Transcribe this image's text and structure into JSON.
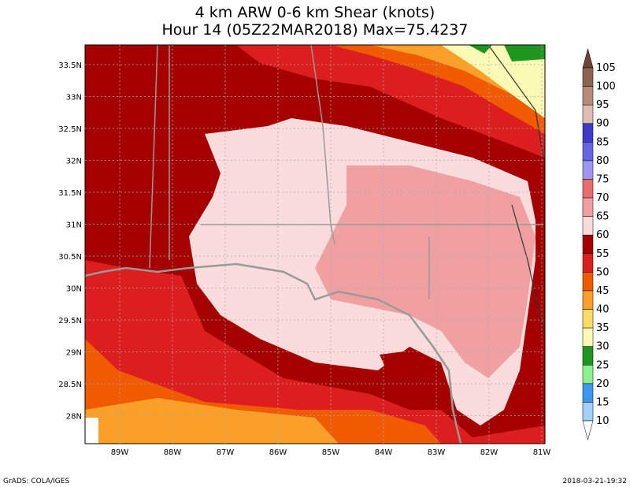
{
  "title": {
    "line1": "4 km ARW 0-6 km Shear (knots)",
    "line2": "Hour 14 (05Z22MAR2018) Max=75.4237"
  },
  "map": {
    "lat_labels": [
      "33.5N",
      "33N",
      "32.5N",
      "32N",
      "31.5N",
      "31N",
      "30.5N",
      "30N",
      "29.5N",
      "29N",
      "28.5N",
      "28N"
    ],
    "lon_labels": [
      "89W",
      "88W",
      "87W",
      "86W",
      "85W",
      "84W",
      "83W",
      "82W",
      "81W"
    ]
  },
  "colorbar": {
    "labels": [
      "105",
      "100",
      "95",
      "90",
      "85",
      "80",
      "75",
      "70",
      "65",
      "60",
      "55",
      "50",
      "45",
      "40",
      "35",
      "30",
      "25",
      "20",
      "15",
      "10"
    ],
    "colors": [
      "#6e4632",
      "#8c6450",
      "#b48c78",
      "#dcbeb4",
      "#3c3cc8",
      "#6464e6",
      "#a096f0",
      "#e66e6e",
      "#f0a0a0",
      "#fadcdc",
      "#a50000",
      "#dc1e1e",
      "#f05a00",
      "#faa028",
      "#fadc64",
      "#fafab4",
      "#1e9620",
      "#8cf08c",
      "#3c96f0",
      "#a0d2fa",
      "#ffffff"
    ]
  },
  "footer": {
    "left": "GrADS: COLA/IGES",
    "right": "2018-03-21-19:32"
  }
}
